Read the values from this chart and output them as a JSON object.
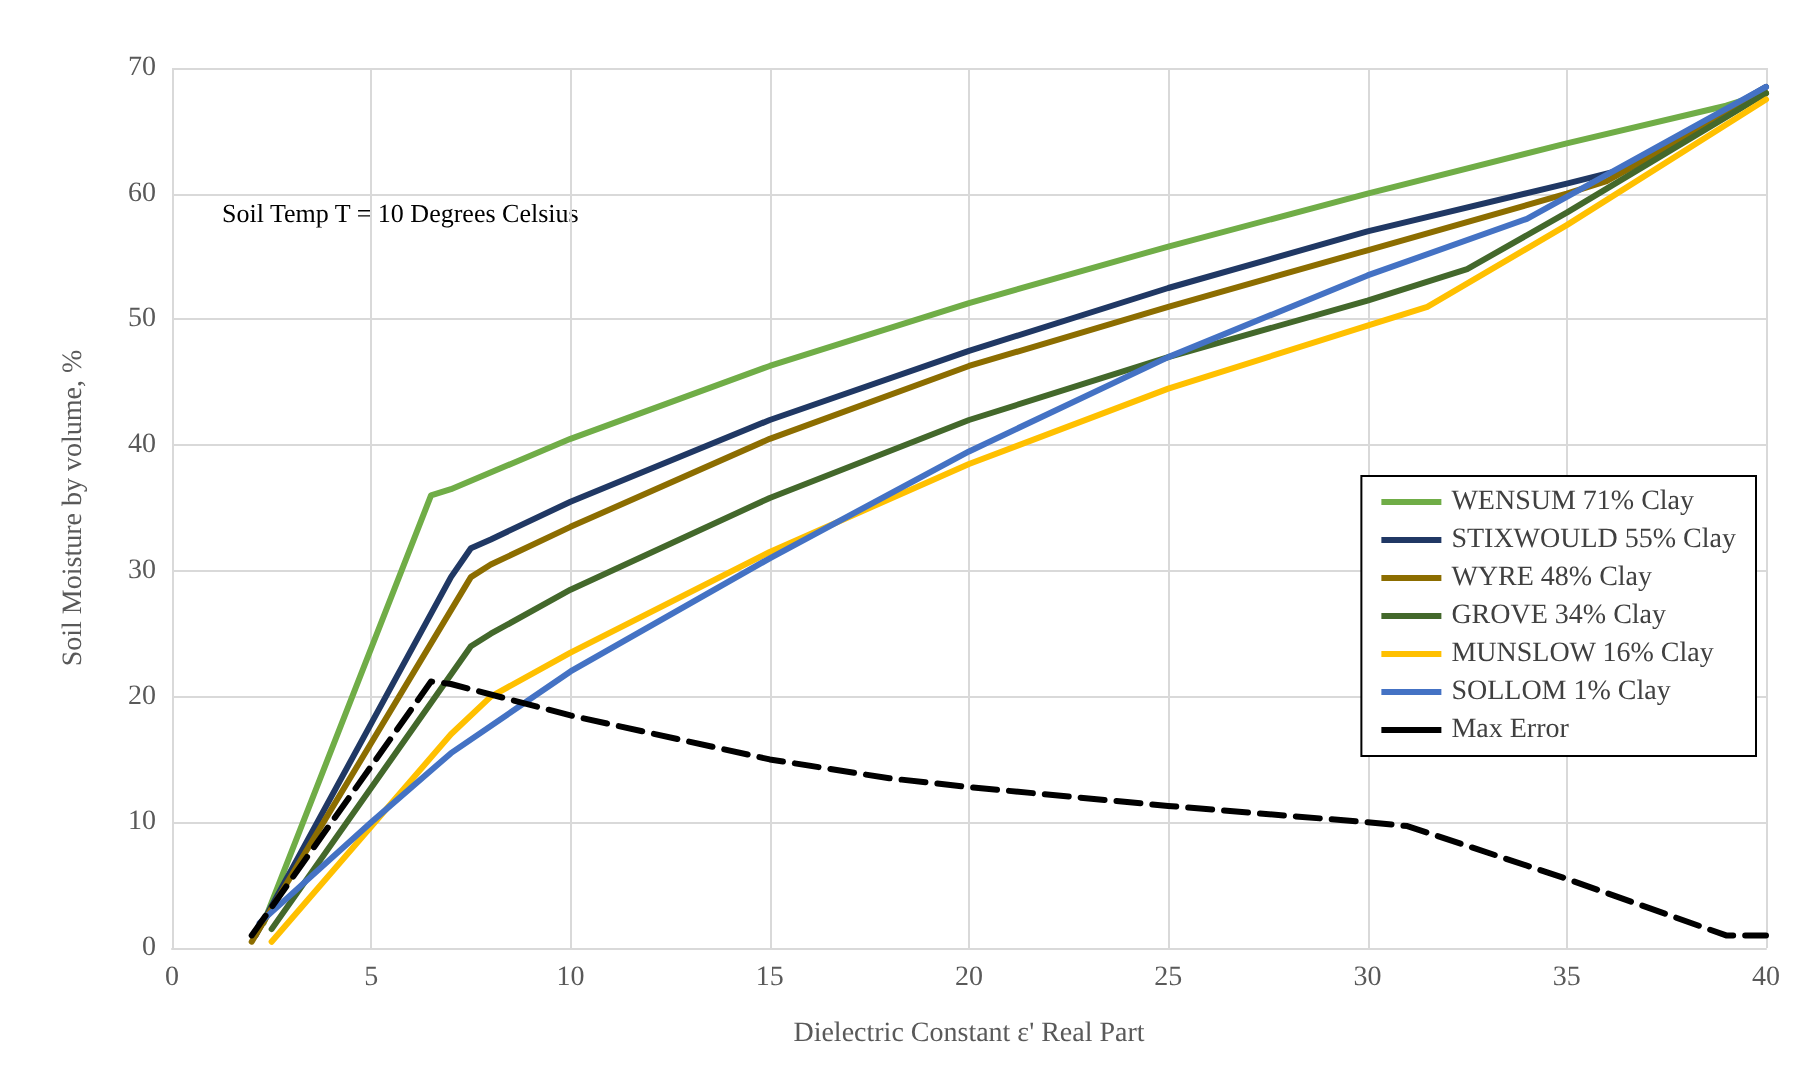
{
  "chart_data": {
    "type": "line",
    "xlabel": "Dielectric Constant ε' Real Part",
    "ylabel": "Soil Moisture by volume, %",
    "annotations": [
      "Soil Temp T = 10 Degrees Celsius"
    ],
    "xlim": [
      0,
      40
    ],
    "xticks": [
      0,
      5,
      10,
      15,
      20,
      25,
      30,
      35,
      40
    ],
    "ylim": [
      0,
      70
    ],
    "yticks": [
      0,
      10,
      20,
      30,
      40,
      50,
      60,
      70
    ],
    "grid": true,
    "legend": "right",
    "marker": "none",
    "series": [
      {
        "name": "WENSUM 71% Clay",
        "color": "#70ad47",
        "x": [
          2.3,
          6.5,
          7,
          10,
          15,
          20,
          25,
          30,
          35,
          39,
          40
        ],
        "values": [
          2,
          36,
          36.5,
          40.5,
          46.3,
          51.3,
          55.8,
          60,
          64,
          67,
          68
        ]
      },
      {
        "name": "STIXWOULD 55% Clay",
        "color": "#203864",
        "x": [
          2.1,
          7,
          7.5,
          8,
          10,
          15,
          20,
          25,
          30,
          35,
          36.5,
          40
        ],
        "values": [
          1,
          29.5,
          31.8,
          32.5,
          35.5,
          42,
          47.5,
          52.5,
          57,
          60.8,
          62,
          68.5
        ]
      },
      {
        "name": "WYRE 48% Clay",
        "color": "#8c6d00",
        "x": [
          2,
          7.5,
          8,
          10,
          15,
          20,
          25,
          30,
          35,
          36,
          40
        ],
        "values": [
          0.5,
          29.5,
          30.5,
          33.5,
          40.5,
          46.3,
          51,
          55.5,
          60,
          61,
          68
        ]
      },
      {
        "name": "GROVE 34% Clay",
        "color": "#43682b",
        "x": [
          2.5,
          7.5,
          8,
          10,
          15,
          20,
          25,
          30,
          32.5,
          35,
          40
        ],
        "values": [
          1.5,
          24,
          25,
          28.5,
          35.8,
          42,
          47,
          51.5,
          54,
          58.5,
          68
        ]
      },
      {
        "name": "MUNSLOW 16% Clay",
        "color": "#ffc000",
        "x": [
          2.5,
          7,
          8,
          10,
          15,
          20,
          25,
          30,
          31.5,
          35,
          40
        ],
        "values": [
          0.5,
          17,
          20,
          23.5,
          31.5,
          38.5,
          44.5,
          49.5,
          51,
          57.5,
          67.5
        ]
      },
      {
        "name": "SOLLOM 1% Clay",
        "color": "#4472c4",
        "x": [
          2.2,
          5,
          7,
          10,
          15,
          20,
          25,
          30,
          34,
          40
        ],
        "values": [
          2,
          10,
          15.5,
          22,
          31,
          39.5,
          47,
          53.5,
          58,
          68.5
        ]
      },
      {
        "name": "Max Error",
        "color": "#000000",
        "line_style": "dashed",
        "x": [
          2,
          6.5,
          7,
          10,
          15,
          18,
          20,
          25,
          30,
          31,
          35,
          39,
          40
        ],
        "values": [
          1,
          21.2,
          21,
          18.5,
          15,
          13.5,
          12.8,
          11.3,
          10,
          9.7,
          5.5,
          1,
          1
        ]
      }
    ]
  }
}
